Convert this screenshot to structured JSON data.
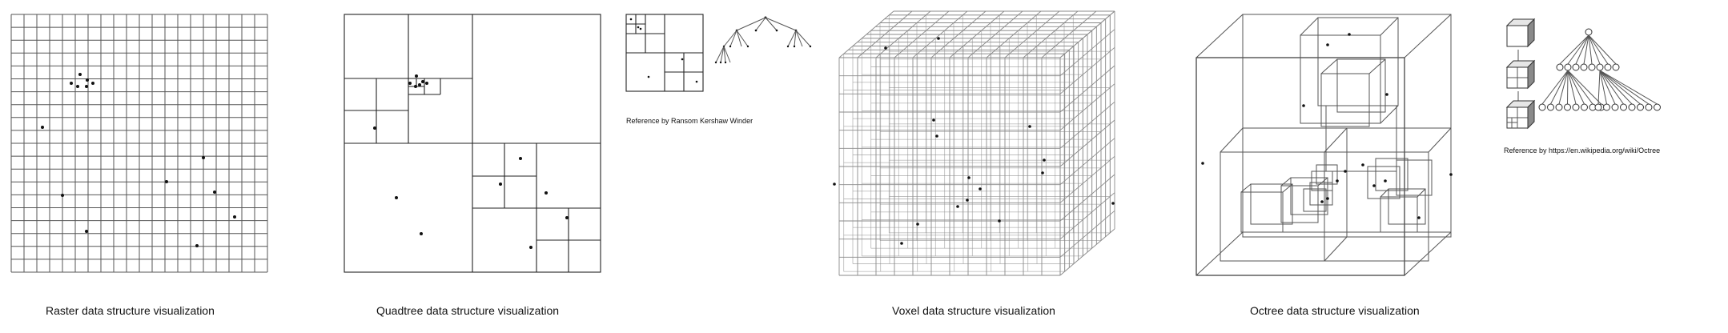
{
  "captions": {
    "raster": "Raster data structure visualization",
    "quadtree": "Quadtree data structure visualization",
    "voxel": "Voxel data structure visualization",
    "octree": "Octree data structure visualization"
  },
  "references": {
    "quadtree": "Reference by Ransom Kershaw Winder",
    "octree": "Reference by https://en.wikipedia.org/wiki/Octree"
  },
  "grid_cells": {
    "raster": 20,
    "voxel": 12
  }
}
